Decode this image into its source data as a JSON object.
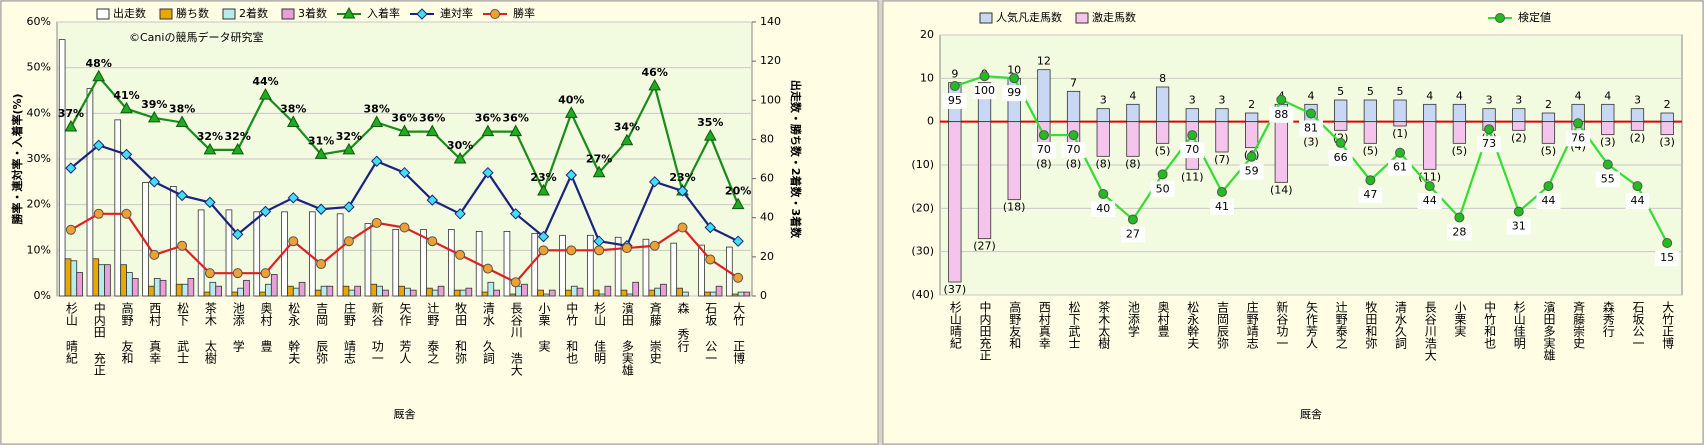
{
  "chart_data": [
    {
      "type": "combo",
      "annotation": "©Caniの競馬データ研究室",
      "x_label": "厩舎",
      "y_label": "勝率・連対率・入着率(%)",
      "y2_label": "出走数・勝ち数・2着数・3着数",
      "categories": [
        "杉山 晴紀",
        "中内田 充正",
        "高野 友和",
        "西村 真幸",
        "松下 武士",
        "茶木 太樹",
        "池添 学",
        "奥村 豊",
        "松永 幹夫",
        "吉岡 辰弥",
        "庄野 靖志",
        "新谷 功一",
        "矢作 芳人",
        "辻野 泰之",
        "牧田 和弥",
        "清水 久詞",
        "長谷川 浩大",
        "小栗 実",
        "中竹 和也",
        "杉山 佳明",
        "濱田 多実雄",
        "斉藤 崇史",
        "森 秀行",
        "石坂 公一",
        "大竹 正博"
      ],
      "ylim": [
        0,
        60
      ],
      "yticks": [
        {
          "value": 0,
          "label": "0%"
        },
        {
          "value": 10,
          "label": "10%"
        },
        {
          "value": 20,
          "label": "20%"
        },
        {
          "value": 30,
          "label": "30%"
        },
        {
          "value": 40,
          "label": "40%"
        },
        {
          "value": 50,
          "label": "50%"
        },
        {
          "value": 60,
          "label": "60%"
        }
      ],
      "y2lim": [
        0,
        140
      ],
      "y2ticks": [
        0,
        20,
        40,
        60,
        80,
        100,
        120,
        140
      ],
      "grid": true,
      "series": [
        {
          "name": "出走数",
          "type": "bar",
          "axis": "y2",
          "color": "#ffffff",
          "values": [
            131,
            106,
            90,
            58,
            56,
            44,
            44,
            43,
            43,
            43,
            42,
            37,
            34,
            34,
            34,
            33,
            33,
            32,
            31,
            31,
            30,
            29,
            27,
            26,
            25
          ]
        },
        {
          "name": "勝ち数",
          "type": "bar",
          "axis": "y2",
          "color": "#e8a800",
          "values": [
            19,
            19,
            16,
            5,
            6,
            2,
            2,
            2,
            5,
            3,
            5,
            6,
            5,
            4,
            3,
            2,
            1,
            3,
            3,
            3,
            3,
            3,
            4,
            2,
            1
          ]
        },
        {
          "name": "2着数",
          "type": "bar",
          "axis": "y2",
          "color": "#b8ecec",
          "values": [
            18,
            16,
            12,
            9,
            6,
            7,
            4,
            6,
            4,
            5,
            3,
            5,
            4,
            3,
            3,
            7,
            5,
            1,
            5,
            1,
            1,
            4,
            2,
            2,
            2
          ]
        },
        {
          "name": "3着数",
          "type": "bar",
          "axis": "y2",
          "color": "#e8a0d8",
          "values": [
            12,
            16,
            9,
            8,
            9,
            5,
            8,
            11,
            7,
            5,
            5,
            3,
            3,
            5,
            4,
            3,
            6,
            3,
            4,
            5,
            7,
            6,
            0,
            5,
            2
          ]
        },
        {
          "name": "入着率",
          "type": "line",
          "axis": "y",
          "color": "#1a8c1a",
          "marker": "triangle",
          "marker_color": "#22aa22",
          "label_position": "above",
          "label_color": "#000000",
          "values": [
            37,
            48,
            41,
            39,
            38,
            32,
            32,
            44,
            38,
            31,
            32,
            38,
            36,
            36,
            30,
            36,
            36,
            23,
            40,
            27,
            34,
            46,
            23,
            35,
            20
          ],
          "value_labels": [
            "37%",
            "48%",
            "41%",
            "39%",
            "38%",
            "32%",
            "32%",
            "44%",
            "38%",
            "31%",
            "32%",
            "38%",
            "36%",
            "36%",
            "30%",
            "36%",
            "36%",
            "23%",
            "40%",
            "27%",
            "34%",
            "46%",
            "23%",
            "35%",
            "20%"
          ]
        },
        {
          "name": "連対率",
          "type": "line",
          "axis": "y",
          "color": "#1a237e",
          "marker": "diamond",
          "marker_color": "#40e0f0",
          "values": [
            28,
            33,
            31,
            25,
            22,
            20.5,
            13.5,
            18.5,
            21.5,
            19,
            19.5,
            29.5,
            27,
            21,
            18,
            27,
            18,
            13,
            26.5,
            12,
            11,
            25,
            23,
            15,
            12
          ]
        },
        {
          "name": "勝率",
          "type": "line",
          "axis": "y",
          "color": "#e02020",
          "marker": "circle",
          "marker_color": "#f0a030",
          "values": [
            14.5,
            18,
            18,
            9,
            11,
            5,
            5,
            5,
            12,
            7,
            12,
            16,
            15,
            12,
            9,
            6,
            3,
            10,
            10,
            10,
            10.5,
            11,
            15,
            8,
            4
          ]
        }
      ]
    },
    {
      "type": "combo",
      "x_label": "厩舎",
      "stacked": true,
      "zero_line_color": "#e00000",
      "categories": [
        "杉山晴紀",
        "中内田充正",
        "高野友和",
        "西村真幸",
        "松下武士",
        "茶木太樹",
        "池添学",
        "奥村豊",
        "松永幹夫",
        "吉岡辰弥",
        "庄野靖志",
        "新谷功一",
        "矢作芳人",
        "辻野泰之",
        "牧田和弥",
        "清水久詞",
        "長谷川浩大",
        "小栗実",
        "中竹和也",
        "杉山佳明",
        "濱田多実雄",
        "斉藤崇史",
        "森秀行",
        "石坂公一",
        "大竹正博"
      ],
      "ylim": [
        -40,
        20
      ],
      "yticks": [
        {
          "value": -40,
          "label": "(40)"
        },
        {
          "value": -30,
          "label": "(30)"
        },
        {
          "value": -20,
          "label": "(20)"
        },
        {
          "value": -10,
          "label": "(10)"
        },
        0,
        10,
        20
      ],
      "y2lim": [
        -11.5,
        121
      ],
      "grid": true,
      "series": [
        {
          "name": "人気凡走馬数",
          "type": "bar",
          "color": "#c8d8f4",
          "label_color": "#000000",
          "values": [
            9,
            9,
            10,
            12,
            7,
            3,
            4,
            8,
            3,
            3,
            2,
            4,
            4,
            5,
            5,
            5,
            4,
            4,
            3,
            3,
            2,
            4,
            4,
            3,
            2
          ]
        },
        {
          "name": "激走馬数",
          "type": "bar",
          "color": "#f4c4ec",
          "label_color": "#e00000",
          "values": [
            -37,
            -27,
            -18,
            -8,
            -8,
            -8,
            -8,
            -5,
            -11,
            -7,
            -6,
            -14,
            -3,
            -2,
            -5,
            -1,
            -11,
            -5,
            -2,
            -2,
            -5,
            -4,
            -3,
            -2,
            -3
          ],
          "value_labels": [
            "(37)",
            "(27)",
            "(18)",
            "(8)",
            "(8)",
            "(8)",
            "(8)",
            "(5)",
            "(11)",
            "(7)",
            "(6)",
            "(14)",
            "(3)",
            "(2)",
            "(5)",
            "(1)",
            "(11)",
            "(5)",
            "(2)",
            "(2)",
            "(5)",
            "(4)",
            "(3)",
            "(2)",
            "(3)"
          ]
        },
        {
          "name": "検定値",
          "type": "line",
          "axis": "y2",
          "color": "#33dd33",
          "marker": "circle",
          "marker_color": "#22bb22",
          "label_position": "below",
          "label_color": "#118888",
          "values": [
            95,
            100,
            99,
            70,
            70,
            40,
            27,
            50,
            70,
            41,
            59,
            88,
            81,
            66,
            47,
            61,
            44,
            28,
            73,
            31,
            44,
            76,
            55,
            44,
            15
          ]
        }
      ]
    }
  ]
}
